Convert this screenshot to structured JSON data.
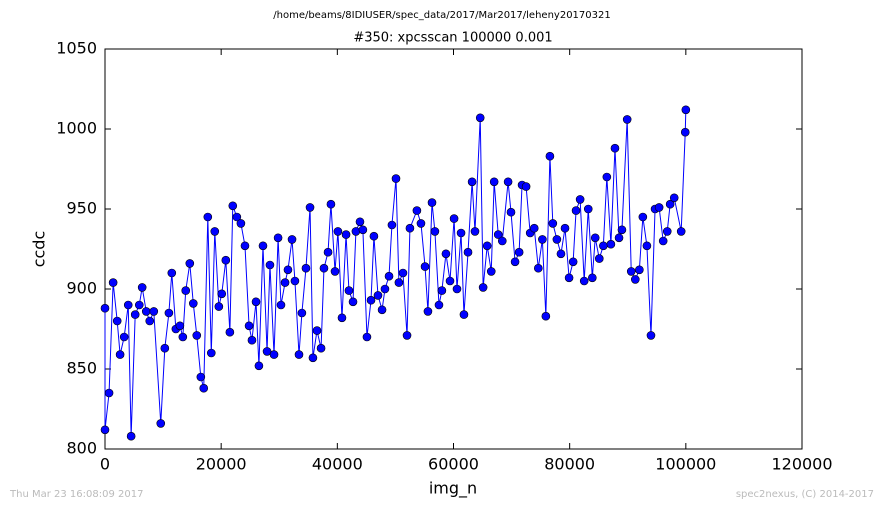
{
  "chart_data": {
    "type": "line",
    "title": "/home/beams/8IDIUSER/spec_data/2017/Mar2017/leheny20170321",
    "subtitle": "#350: xpcsscan 100000 0.001",
    "x_label": "img_n",
    "y_label": "ccdc",
    "footer_left": "Thu Mar 23 16:08:09 2017",
    "footer_right": "spec2nexus, (C) 2014-2017",
    "color": "#0000ff",
    "markers": true,
    "x": [
      0,
      0,
      700,
      1400,
      2100,
      2600,
      3300,
      4000,
      4500,
      5200,
      5900,
      6400,
      7100,
      7700,
      8400,
      9600,
      10300,
      11000,
      11500,
      12200,
      12900,
      13400,
      13900,
      14600,
      15200,
      15800,
      16500,
      17000,
      17700,
      18300,
      18900,
      19600,
      20100,
      20800,
      21500,
      22000,
      22700,
      23400,
      24100,
      24800,
      25300,
      26000,
      26500,
      27200,
      27900,
      28400,
      29100,
      29800,
      30300,
      31000,
      31500,
      32200,
      32700,
      33400,
      33900,
      34600,
      35300,
      35800,
      36500,
      37200,
      37700,
      38400,
      38900,
      39600,
      40100,
      40800,
      41500,
      42000,
      42700,
      43200,
      43900,
      44400,
      45100,
      45800,
      46300,
      47000,
      47700,
      48200,
      48900,
      49400,
      50100,
      50600,
      51300,
      52000,
      52500,
      53700,
      54400,
      55100,
      55600,
      56300,
      56800,
      57500,
      58000,
      58700,
      59400,
      60100,
      60600,
      61300,
      61800,
      62500,
      63200,
      63700,
      64600,
      65100,
      65800,
      66500,
      67000,
      67700,
      68400,
      69400,
      69900,
      70600,
      71300,
      71800,
      72500,
      73200,
      73900,
      74600,
      75300,
      75900,
      76600,
      77100,
      77800,
      78500,
      79200,
      79900,
      80600,
      81100,
      81800,
      82500,
      83200,
      83900,
      84400,
      85100,
      85800,
      86400,
      87100,
      87800,
      88500,
      89000,
      89900,
      90600,
      91300,
      92000,
      92600,
      93300,
      94000,
      94700,
      95400,
      96100,
      96800,
      97300,
      98000,
      99200,
      99900,
      100000
    ],
    "values": [
      888,
      812,
      835,
      904,
      880,
      859,
      870,
      890,
      808,
      884,
      890,
      901,
      886,
      880,
      886,
      816,
      863,
      885,
      910,
      875,
      877,
      870,
      899,
      916,
      891,
      871,
      845,
      838,
      945,
      860,
      936,
      889,
      897,
      918,
      873,
      952,
      945,
      941,
      927,
      877,
      868,
      892,
      852,
      927,
      861,
      915,
      859,
      932,
      890,
      904,
      912,
      931,
      905,
      859,
      885,
      913,
      951,
      857,
      874,
      863,
      913,
      923,
      953,
      911,
      936,
      882,
      934,
      899,
      892,
      936,
      942,
      937,
      870,
      893,
      933,
      896,
      887,
      900,
      908,
      940,
      969,
      904,
      910,
      871,
      938,
      949,
      941,
      914,
      886,
      954,
      936,
      890,
      899,
      922,
      905,
      944,
      900,
      935,
      884,
      923,
      967,
      936,
      1007,
      901,
      927,
      911,
      967,
      934,
      930,
      967,
      948,
      917,
      923,
      965,
      964,
      935,
      938,
      913,
      931,
      883,
      983,
      941,
      931,
      922,
      938,
      907,
      917,
      949,
      956,
      905,
      950,
      907,
      932,
      919,
      927,
      970,
      928,
      988,
      932,
      937,
      1006,
      911,
      906,
      912,
      945,
      927,
      871,
      950,
      951,
      930,
      936,
      953,
      957,
      936,
      998,
      1012
    ],
    "xlim": [
      0,
      120000
    ],
    "xticks": [
      0,
      20000,
      40000,
      60000,
      80000,
      100000,
      120000
    ],
    "ylim": [
      800,
      1050
    ],
    "yticks": [
      800,
      850,
      900,
      950,
      1000,
      1050
    ]
  }
}
